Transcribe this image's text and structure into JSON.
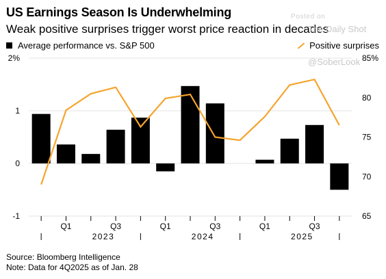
{
  "title": "US Earnings Season Is Underwhelming",
  "subtitle": "Weak positive surprises trigger worst price reaction in decades",
  "watermark": {
    "posted": "Posted on",
    "site": "The Daily Shot",
    "handle": "@SoberLook"
  },
  "source": {
    "line1": "Source: Bloomberg Intelligence",
    "line2": "Note: Data for 4Q2025 as of Jan. 28"
  },
  "colors": {
    "bars": "#000000",
    "line": "#f5a42c",
    "grid": "#e3e3e3"
  },
  "chart_data": {
    "type": "bar",
    "categories": [
      "Q4 2022",
      "Q1 2023",
      "Q2 2023",
      "Q3 2023",
      "Q4 2023",
      "Q1 2024",
      "Q2 2024",
      "Q3 2024",
      "Q4 2024",
      "Q1 2025",
      "Q2 2025",
      "Q3 2025",
      "Q4 2025"
    ],
    "x_tick_labels": [
      "",
      "Q1",
      "",
      "Q3",
      "",
      "Q1",
      "",
      "Q3",
      "",
      "Q1",
      "",
      "Q3",
      ""
    ],
    "year_labels": [
      {
        "label": "2023",
        "start": 1,
        "end": 4
      },
      {
        "label": "2024",
        "start": 5,
        "end": 8
      },
      {
        "label": "2025",
        "start": 9,
        "end": 12
      }
    ],
    "series": [
      {
        "name": "Average performance vs. S&P 500",
        "type": "bar",
        "axis": "left",
        "values": [
          0.94,
          0.36,
          0.18,
          0.64,
          0.87,
          -0.15,
          1.47,
          1.14,
          null,
          0.07,
          0.47,
          0.73,
          -0.5
        ]
      },
      {
        "name": "Positive surprises",
        "type": "line",
        "axis": "right",
        "values": [
          69.0,
          78.4,
          80.5,
          81.3,
          76.3,
          79.9,
          80.4,
          75.0,
          74.6,
          77.6,
          81.6,
          82.3,
          76.5
        ]
      }
    ],
    "y_left": {
      "min": -1,
      "max": 2,
      "ticks": [
        2,
        1,
        0,
        -1
      ],
      "tick_labels": [
        "2%",
        "1",
        "0",
        "-1"
      ]
    },
    "y_right": {
      "min": 65,
      "max": 85,
      "ticks": [
        85,
        80,
        75,
        70,
        65
      ],
      "tick_labels": [
        "85%",
        "80",
        "75",
        "70",
        "65"
      ]
    },
    "grid": true,
    "legend": "top"
  }
}
